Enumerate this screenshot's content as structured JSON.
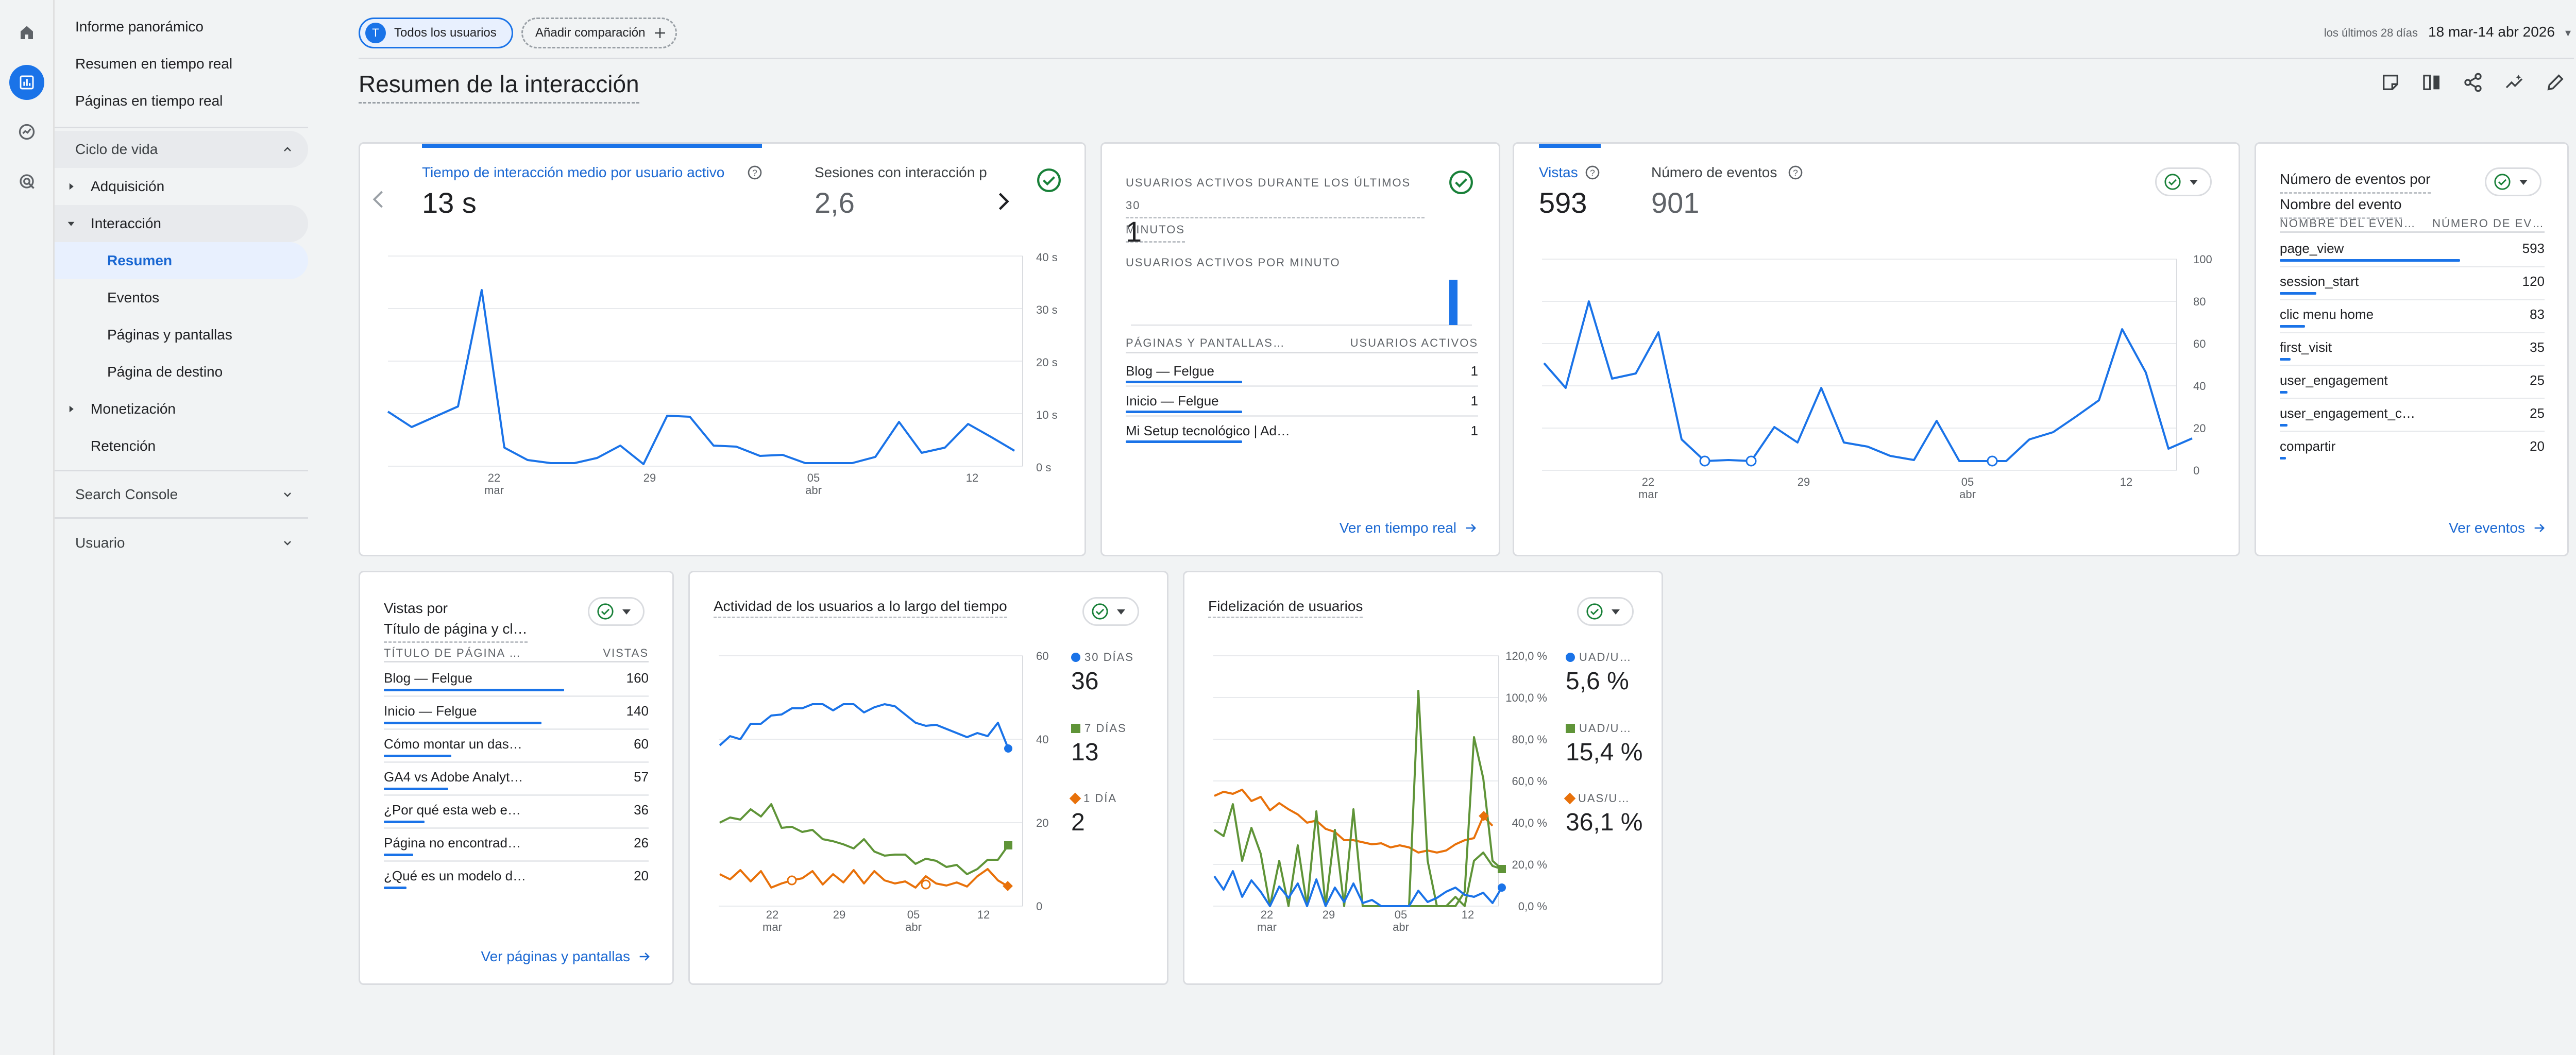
{
  "nav": {
    "top_items": [
      "Informe panorámico",
      "Resumen en tiempo real",
      "Páginas en tiempo real"
    ],
    "lifecycle": "Ciclo de vida",
    "adquisicion": "Adquisición",
    "interaccion": "Interacción",
    "interaccion_sub": [
      "Resumen",
      "Eventos",
      "Páginas y pantallas",
      "Página de destino"
    ],
    "monetizacion": "Monetización",
    "retencion": "Retención",
    "search_console": "Search Console",
    "usuario": "Usuario"
  },
  "header": {
    "chip_users": "Todos los usuarios",
    "chip_users_initial": "T",
    "chip_compare": "Añadir comparación",
    "date_label": "los últimos 28 días",
    "date_value": "18 mar-14 abr 2026",
    "title": "Resumen de la interacción"
  },
  "card1": {
    "metric1_label": "Tiempo de interacción medio por usuario activo",
    "metric1_value": "13 s",
    "metric2_label": "Sesiones con interacción p",
    "metric2_value": "2,6",
    "y_ticks": [
      "40 s",
      "30 s",
      "20 s",
      "10 s",
      "0 s"
    ],
    "x_ticks": [
      [
        "22",
        "mar"
      ],
      [
        "29",
        ""
      ],
      [
        "05",
        "abr"
      ],
      [
        "12",
        ""
      ]
    ]
  },
  "card2": {
    "title_line1": "USUARIOS ACTIVOS DURANTE LOS ÚLTIMOS 30",
    "title_line2": "MINUTOS",
    "value": "1",
    "sub": "USUARIOS ACTIVOS POR MINUTO",
    "col1": "PÁGINAS Y PANTALLAS…",
    "col2": "USUARIOS ACTIVOS",
    "rows": [
      {
        "name": "Blog — Felgue",
        "value": "1"
      },
      {
        "name": "Inicio — Felgue",
        "value": "1"
      },
      {
        "name": "Mi Setup tecnológico | Ad…",
        "value": "1"
      }
    ],
    "link": "Ver en tiempo real"
  },
  "card3": {
    "metric1_label": "Vistas",
    "metric1_value": "593",
    "metric2_label": "Número de eventos",
    "metric2_value": "901",
    "y_ticks": [
      "100",
      "80",
      "60",
      "40",
      "20",
      "0"
    ],
    "x_ticks": [
      [
        "22",
        "mar"
      ],
      [
        "29",
        ""
      ],
      [
        "05",
        "abr"
      ],
      [
        "12",
        ""
      ]
    ]
  },
  "card4": {
    "title_line1": "Número de eventos por",
    "title_line2": "Nombre del evento",
    "col1": "NOMBRE DEL EVEN…",
    "col2": "NÚMERO DE EV…",
    "rows": [
      {
        "name": "page_view",
        "value": "593"
      },
      {
        "name": "session_start",
        "value": "120"
      },
      {
        "name": "clic menu home",
        "value": "83"
      },
      {
        "name": "first_visit",
        "value": "35"
      },
      {
        "name": "user_engagement",
        "value": "25"
      },
      {
        "name": "user_engagement_c…",
        "value": "25"
      },
      {
        "name": "compartir",
        "value": "20"
      }
    ],
    "link": "Ver eventos"
  },
  "card5": {
    "title_line1": "Vistas por",
    "title_line2": "Título de página y cl…",
    "col1": "TÍTULO DE PÁGINA …",
    "col2": "VISTAS",
    "rows": [
      {
        "name": "Blog — Felgue",
        "value": "160"
      },
      {
        "name": "Inicio — Felgue",
        "value": "140"
      },
      {
        "name": "Cómo montar un das…",
        "value": "60"
      },
      {
        "name": "GA4 vs Adobe Analyt…",
        "value": "57"
      },
      {
        "name": "¿Por qué esta web e…",
        "value": "36"
      },
      {
        "name": "Página no encontrad…",
        "value": "26"
      },
      {
        "name": "¿Qué es un modelo d…",
        "value": "20"
      }
    ],
    "link": "Ver páginas y pantallas"
  },
  "card6": {
    "title": "Actividad de los usuarios a lo largo del tiempo",
    "y_ticks": [
      "60",
      "40",
      "20",
      "0"
    ],
    "x_ticks": [
      [
        "22",
        "mar"
      ],
      [
        "29",
        ""
      ],
      [
        "05",
        "abr"
      ],
      [
        "12",
        ""
      ]
    ],
    "legend": [
      {
        "name": "30 DÍAS",
        "value": "36",
        "color": "#1a73e8"
      },
      {
        "name": "7 DÍAS",
        "value": "13",
        "color": "#5f9438"
      },
      {
        "name": "1 DÍA",
        "value": "2",
        "color": "#e8710a"
      }
    ]
  },
  "card7": {
    "title": "Fidelización de usuarios",
    "y_ticks": [
      "120,0 %",
      "100,0 %",
      "80,0 %",
      "60,0 %",
      "40,0 %",
      "20,0 %",
      "0,0 %"
    ],
    "x_ticks": [
      [
        "22",
        "mar"
      ],
      [
        "29",
        ""
      ],
      [
        "05",
        "abr"
      ],
      [
        "12",
        ""
      ]
    ],
    "legend": [
      {
        "name": "UAD/U…",
        "value": "5,6 %",
        "color": "#1a73e8"
      },
      {
        "name": "UAD/U…",
        "value": "15,4 %",
        "color": "#5f9438"
      },
      {
        "name": "UAS/U…",
        "value": "36,1 %",
        "color": "#e8710a"
      }
    ]
  },
  "colors": {
    "accent": "#1a73e8",
    "green": "#5f9438",
    "orange": "#e8710a",
    "check": "#188038"
  }
}
